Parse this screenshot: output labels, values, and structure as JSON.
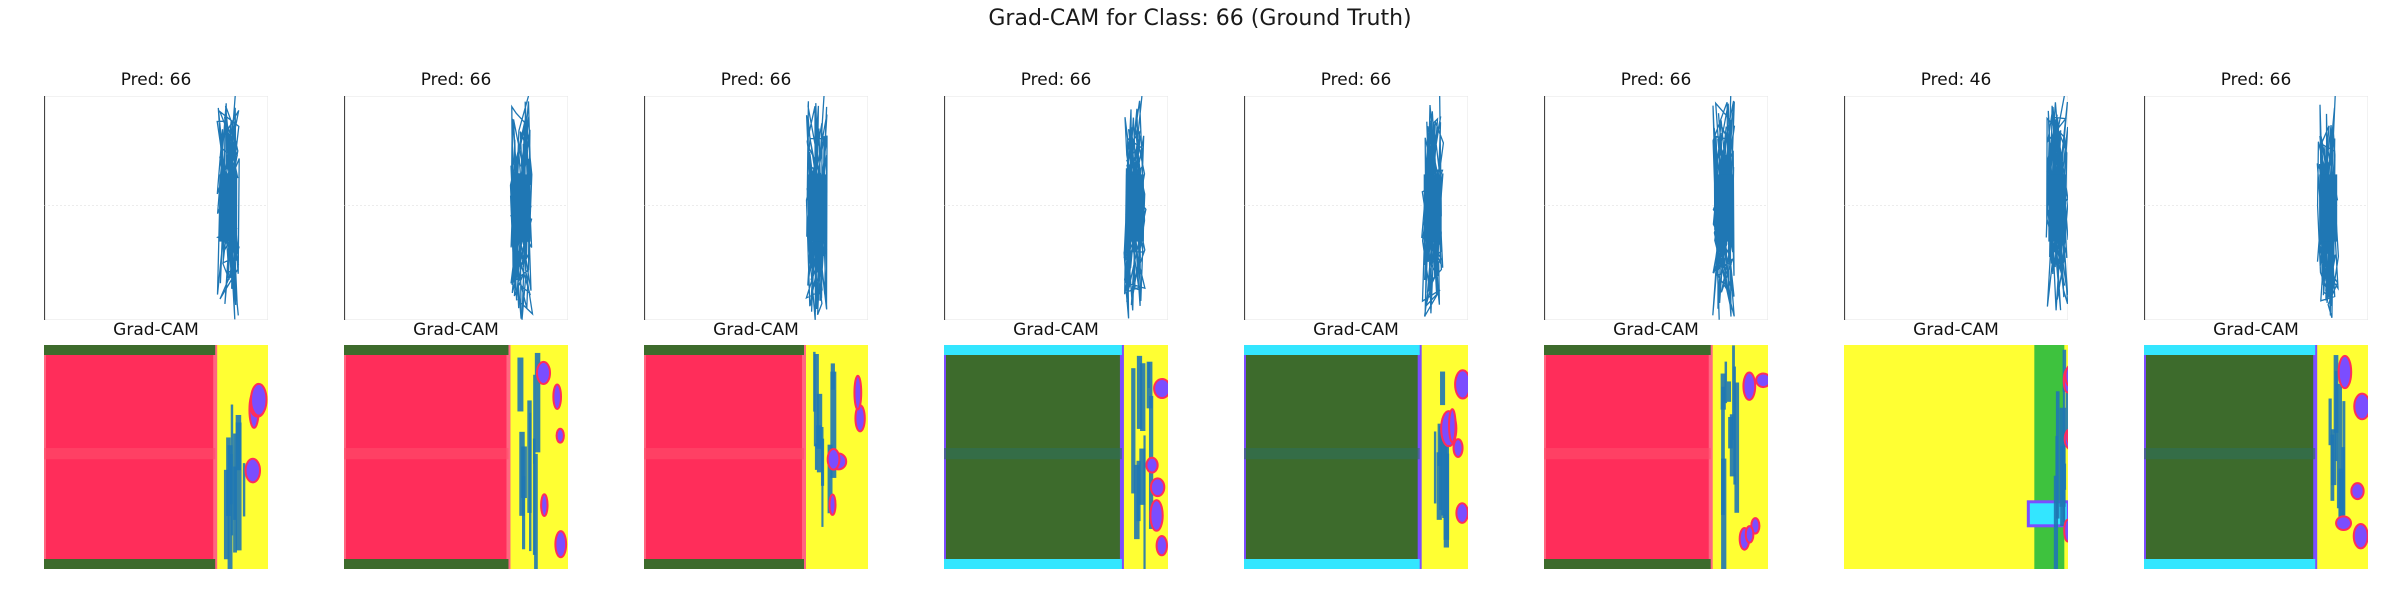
{
  "figure": {
    "title": "Grad-CAM for Class: 66 (Ground Truth)"
  },
  "chart_data": {
    "type": "line",
    "title": "Grad-CAM for Class: 66 (Ground Truth)",
    "ground_truth_class": 66,
    "layout": "2 rows x 8 columns",
    "rows": [
      "signal plot",
      "Grad-CAM heatmap"
    ],
    "heatmap_title": "Grad-CAM",
    "axes": "off",
    "series_color": "#1f77b4",
    "panels": [
      {
        "prediction": 66,
        "prediction_label": "Pred: 66"
      },
      {
        "prediction": 66,
        "prediction_label": "Pred: 66"
      },
      {
        "prediction": 66,
        "prediction_label": "Pred: 66"
      },
      {
        "prediction": 66,
        "prediction_label": "Pred: 66"
      },
      {
        "prediction": 66,
        "prediction_label": "Pred: 66"
      },
      {
        "prediction": 66,
        "prediction_label": "Pred: 66"
      },
      {
        "prediction": 46,
        "prediction_label": "Pred: 46"
      },
      {
        "prediction": 66,
        "prediction_label": "Pred: 66"
      }
    ],
    "heatmap_colors": {
      "high": "#ff2d5a",
      "low": "#3d6b2c",
      "background": "#ffff33",
      "edge": "#7b4dff",
      "cyan": "#33e6ff"
    }
  }
}
